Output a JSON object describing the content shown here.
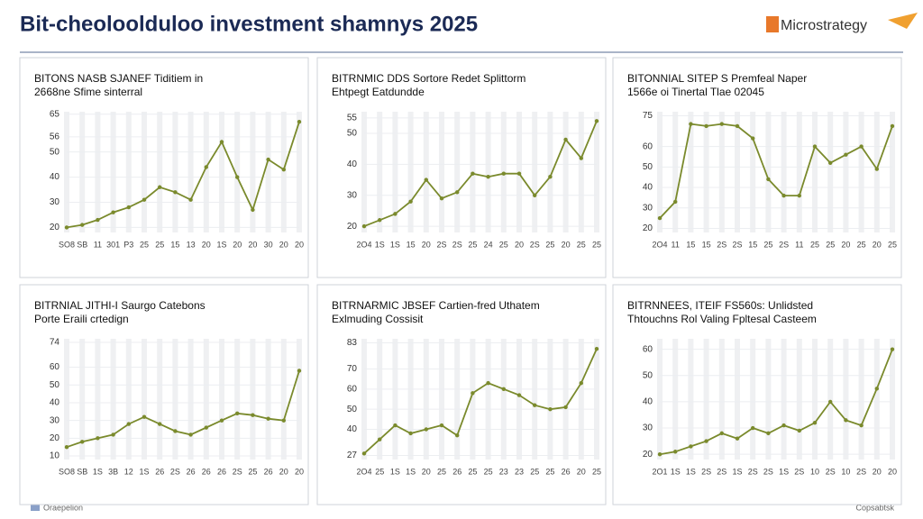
{
  "header": {
    "title": "Bit-cheoloolduloo investment shamnys 2025",
    "logo": "Microstrategy"
  },
  "footer": {
    "left": "Oraepelion",
    "right": "Copsabtsk"
  },
  "chart_data": [
    {
      "type": "line",
      "title": "BITONS NASB SJANEF Tiditiem in",
      "subtitle": "2668ne Sfime sinterral",
      "categories": [
        "SO8",
        "SB",
        "11",
        "301",
        "P3",
        "25",
        "25",
        "15",
        "13",
        "20",
        "1S",
        "20",
        "20",
        "30",
        "20",
        "20"
      ],
      "values": [
        20,
        21,
        23,
        26,
        28,
        31,
        36,
        34,
        31,
        44,
        54,
        40,
        27,
        47,
        43,
        62
      ],
      "color": "#7a8a2c",
      "ylim": [
        18,
        66
      ],
      "yticks": [
        20,
        30,
        40,
        50,
        56,
        65
      ]
    },
    {
      "type": "line",
      "title": "BITRNMIC DDS Sortore Redet Splittorm",
      "subtitle": "Ehtpegt Eatdundde",
      "categories": [
        "2O4",
        "1S",
        "1S",
        "15",
        "20",
        "2S",
        "2S",
        "25",
        "24",
        "25",
        "20",
        "2S",
        "25",
        "20",
        "25",
        "25"
      ],
      "values": [
        20,
        22,
        24,
        28,
        35,
        29,
        31,
        37,
        36,
        37,
        37,
        30,
        36,
        48,
        42,
        54
      ],
      "color": "#7a8a2c",
      "ylim": [
        18,
        57
      ],
      "yticks": [
        20,
        30,
        40,
        50,
        55
      ]
    },
    {
      "type": "line",
      "title": "BITONNIAL SITEP S Premfeal Naper",
      "subtitle": "1566e oi Tinertal Tlae 02045",
      "categories": [
        "2O4",
        "11",
        "15",
        "15",
        "2S",
        "2S",
        "15",
        "25",
        "2S",
        "11",
        "25",
        "25",
        "20",
        "25",
        "20",
        "25"
      ],
      "values": [
        25,
        33,
        71,
        70,
        71,
        70,
        64,
        44,
        36,
        36,
        60,
        52,
        56,
        60,
        49,
        70
      ],
      "color": "#7a8a2c",
      "ylim": [
        18,
        77
      ],
      "yticks": [
        20,
        30,
        40,
        50,
        60,
        75
      ]
    },
    {
      "type": "line",
      "title": "BITRNIAL JITHI-I Saurgo Catebons",
      "subtitle": "Porte Eraili crtedign",
      "categories": [
        "SO8",
        "SB",
        "1S",
        "3B",
        "12",
        "1S",
        "26",
        "2S",
        "26",
        "26",
        "26",
        "2S",
        "25",
        "26",
        "20",
        "20"
      ],
      "values": [
        15,
        18,
        20,
        22,
        28,
        32,
        28,
        24,
        22,
        26,
        30,
        34,
        33,
        31,
        30,
        58
      ],
      "color": "#7a8a2c",
      "ylim": [
        8,
        76
      ],
      "yticks": [
        10,
        20,
        30,
        40,
        50,
        60,
        74
      ]
    },
    {
      "type": "line",
      "title": "BITRNARMIC JBSEF Cartien-fred Uthatem",
      "subtitle": "Exlmuding Cossisit",
      "categories": [
        "2O4",
        "25",
        "1S",
        "1S",
        "20",
        "25",
        "26",
        "25",
        "25",
        "23",
        "23",
        "25",
        "25",
        "26",
        "20",
        "25"
      ],
      "values": [
        28,
        35,
        42,
        38,
        40,
        42,
        37,
        58,
        63,
        60,
        57,
        52,
        50,
        51,
        63,
        80
      ],
      "color": "#7a8a2c",
      "ylim": [
        25,
        85
      ],
      "yticks": [
        27,
        40,
        50,
        60,
        70,
        83
      ]
    },
    {
      "type": "line",
      "title": "BITRNNEES, ITEIF FS560s: Unlidsted",
      "subtitle": "Thtouchns Rol Valing Fpltesal Casteem",
      "categories": [
        "2O1",
        "1S",
        "1S",
        "2S",
        "2S",
        "1S",
        "2S",
        "2S",
        "1S",
        "2S",
        "10",
        "2S",
        "10",
        "2S",
        "20",
        "20"
      ],
      "values": [
        20,
        21,
        23,
        25,
        28,
        26,
        30,
        28,
        31,
        29,
        32,
        40,
        33,
        31,
        45,
        60
      ],
      "color": "#7a8a2c",
      "ylim": [
        18,
        64
      ],
      "yticks": [
        20,
        30,
        40,
        50,
        60
      ]
    }
  ]
}
